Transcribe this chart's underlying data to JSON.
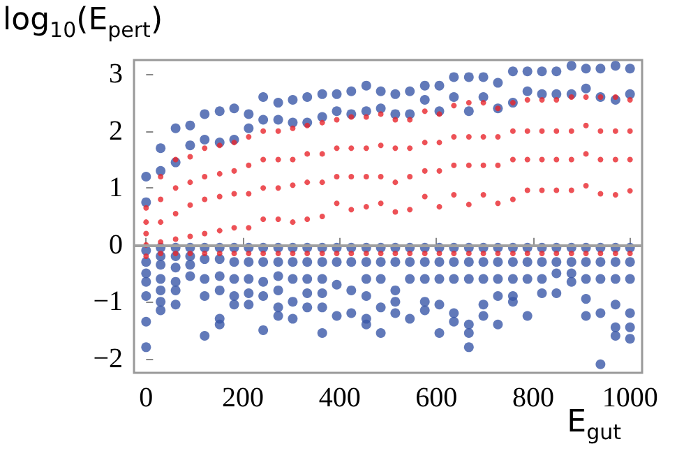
{
  "chart_data": {
    "type": "scatter",
    "xlabel": "E$_{gut}$",
    "ylabel": "log$_{10}$(E$_{pert}$)",
    "xlim": [
      -25,
      1025
    ],
    "ylim": [
      -2.25,
      3.25
    ],
    "xticks": [
      0,
      200,
      400,
      600,
      800,
      1000
    ],
    "yticks": [
      -2,
      -1,
      0,
      1,
      2,
      3
    ],
    "grid": false,
    "marker": "circle",
    "ref_lines": [
      {
        "axis": "y",
        "value": 0,
        "color": "#a0a0a0"
      }
    ],
    "series": [
      {
        "color": "#3a57a8",
        "x": [
          0,
          0,
          0,
          0,
          0,
          0,
          0,
          0,
          0,
          30,
          30,
          30,
          30,
          30,
          30,
          30,
          30,
          30,
          61,
          61,
          61,
          61,
          61,
          61,
          61,
          61,
          91,
          91,
          91,
          91,
          91,
          91,
          121,
          121,
          121,
          121,
          121,
          121,
          121,
          152,
          152,
          152,
          152,
          152,
          152,
          152,
          152,
          182,
          182,
          182,
          182,
          182,
          182,
          182,
          212,
          212,
          212,
          212,
          212,
          212,
          212,
          242,
          242,
          242,
          242,
          242,
          242,
          242,
          273,
          273,
          273,
          273,
          273,
          273,
          273,
          273,
          303,
          303,
          303,
          303,
          303,
          303,
          303,
          333,
          333,
          333,
          333,
          333,
          333,
          333,
          364,
          364,
          364,
          364,
          364,
          364,
          364,
          364,
          394,
          394,
          394,
          394,
          394,
          394,
          424,
          424,
          424,
          424,
          424,
          424,
          455,
          455,
          455,
          455,
          455,
          455,
          455,
          455,
          485,
          485,
          485,
          485,
          485,
          485,
          485,
          515,
          515,
          515,
          515,
          515,
          515,
          515,
          545,
          545,
          545,
          545,
          545,
          545,
          576,
          576,
          576,
          576,
          576,
          576,
          576,
          606,
          606,
          606,
          606,
          606,
          606,
          606,
          636,
          636,
          636,
          636,
          636,
          636,
          636,
          667,
          667,
          667,
          667,
          667,
          667,
          667,
          667,
          697,
          697,
          697,
          697,
          697,
          697,
          697,
          727,
          727,
          727,
          727,
          727,
          727,
          727,
          758,
          758,
          758,
          758,
          758,
          758,
          758,
          788,
          788,
          788,
          788,
          788,
          788,
          818,
          818,
          818,
          818,
          818,
          818,
          848,
          848,
          848,
          848,
          848,
          848,
          879,
          879,
          879,
          879,
          879,
          879,
          909,
          909,
          909,
          909,
          909,
          909,
          909,
          939,
          939,
          939,
          939,
          939,
          939,
          939,
          970,
          970,
          970,
          970,
          970,
          970,
          970,
          970,
          1000,
          1000,
          1000,
          1000,
          1000,
          1000,
          1000,
          1000
        ],
        "values": [
          1.2,
          0.75,
          -0.1,
          -0.3,
          -0.5,
          -0.65,
          -0.9,
          -1.35,
          -1.8,
          1.7,
          1.3,
          -0.05,
          -0.2,
          -0.35,
          -0.6,
          -0.8,
          -1.0,
          -1.15,
          2.05,
          1.45,
          -0.05,
          -0.2,
          -0.4,
          -0.65,
          -0.8,
          -1.05,
          2.1,
          1.75,
          -0.05,
          -0.2,
          -0.35,
          -0.55,
          2.3,
          1.85,
          -0.05,
          -0.25,
          -0.6,
          -0.9,
          -1.6,
          2.35,
          1.8,
          -0.05,
          -0.25,
          -0.55,
          -0.8,
          -1.3,
          -1.4,
          2.4,
          1.85,
          -0.05,
          -0.3,
          -0.6,
          -0.9,
          -1.05,
          2.3,
          2.05,
          -0.05,
          -0.3,
          -0.6,
          -0.85,
          -1.05,
          2.6,
          2.2,
          -0.05,
          -0.3,
          -0.65,
          -0.9,
          -1.5,
          2.5,
          2.2,
          -0.05,
          -0.3,
          -0.55,
          -0.8,
          -1.1,
          -1.25,
          2.55,
          2.15,
          -0.05,
          -0.3,
          -0.6,
          -1.0,
          -1.3,
          2.6,
          2.15,
          -0.05,
          -0.3,
          -0.6,
          -0.85,
          -1.1,
          2.65,
          2.25,
          -0.05,
          -0.3,
          -0.6,
          -0.85,
          -1.1,
          -1.55,
          2.65,
          2.35,
          -0.05,
          -0.3,
          -0.7,
          -1.25,
          2.7,
          2.3,
          -0.05,
          -0.3,
          -0.8,
          -1.2,
          2.8,
          2.35,
          -0.05,
          -0.3,
          -0.6,
          -0.9,
          -1.3,
          -1.4,
          2.7,
          2.4,
          -0.05,
          -0.3,
          -0.6,
          -1.1,
          -1.55,
          2.65,
          2.3,
          -0.05,
          -0.3,
          -0.8,
          -1.0,
          -1.2,
          2.7,
          2.3,
          -0.05,
          -0.3,
          -0.6,
          -1.3,
          2.8,
          2.55,
          -0.05,
          -0.3,
          -0.6,
          -1.0,
          -1.15,
          2.8,
          2.35,
          -0.05,
          -0.3,
          -0.6,
          -1.05,
          -1.55,
          2.95,
          2.6,
          -0.05,
          -0.3,
          -0.6,
          -1.2,
          -1.35,
          2.95,
          2.35,
          -0.05,
          -0.3,
          -0.6,
          -1.4,
          -1.55,
          -1.8,
          2.95,
          2.6,
          -0.05,
          -0.3,
          -0.6,
          -1.05,
          -1.25,
          2.85,
          2.4,
          -0.05,
          -0.3,
          -0.6,
          -0.9,
          -1.4,
          3.05,
          2.5,
          -0.05,
          -0.3,
          -0.6,
          -0.9,
          -1.0,
          3.05,
          2.7,
          -0.05,
          -0.3,
          -0.6,
          -1.25,
          3.05,
          2.65,
          -0.05,
          -0.3,
          -0.6,
          -0.85,
          3.05,
          2.65,
          -0.05,
          -0.3,
          -0.5,
          -0.85,
          3.15,
          2.65,
          -0.05,
          -0.3,
          -0.5,
          -0.65,
          3.1,
          2.75,
          -0.05,
          -0.3,
          -0.6,
          -0.95,
          -1.25,
          3.1,
          2.6,
          -0.05,
          -0.3,
          -0.6,
          -1.2,
          -2.1,
          3.15,
          2.55,
          -0.05,
          -0.3,
          -0.6,
          -1.05,
          -1.45,
          -1.6,
          3.1,
          2.65,
          -0.05,
          -0.3,
          -0.6,
          -1.2,
          -1.45,
          -1.65
        ]
      },
      {
        "color": "#e8262c",
        "x": [
          0,
          0,
          0,
          0,
          0,
          30,
          30,
          30,
          30,
          30,
          61,
          61,
          61,
          61,
          61,
          91,
          91,
          91,
          91,
          91,
          121,
          121,
          121,
          121,
          121,
          152,
          152,
          152,
          152,
          152,
          182,
          182,
          182,
          182,
          182,
          212,
          212,
          212,
          212,
          212,
          242,
          242,
          242,
          242,
          242,
          273,
          273,
          273,
          273,
          273,
          303,
          303,
          303,
          303,
          303,
          333,
          333,
          333,
          333,
          333,
          364,
          364,
          364,
          364,
          364,
          394,
          394,
          394,
          394,
          394,
          424,
          424,
          424,
          424,
          424,
          455,
          455,
          455,
          455,
          455,
          485,
          485,
          485,
          485,
          485,
          515,
          515,
          515,
          515,
          515,
          545,
          545,
          545,
          545,
          545,
          576,
          576,
          576,
          576,
          576,
          606,
          606,
          606,
          606,
          606,
          636,
          636,
          636,
          636,
          636,
          667,
          667,
          667,
          667,
          667,
          697,
          697,
          697,
          697,
          697,
          727,
          727,
          727,
          727,
          727,
          758,
          758,
          758,
          758,
          758,
          788,
          788,
          788,
          788,
          788,
          818,
          818,
          818,
          818,
          818,
          848,
          848,
          848,
          848,
          848,
          879,
          879,
          879,
          879,
          879,
          909,
          909,
          909,
          909,
          909,
          939,
          939,
          939,
          939,
          939,
          970,
          970,
          970,
          970,
          970,
          1000,
          1000,
          1000,
          1000,
          1000
        ],
        "values": [
          0.65,
          0.4,
          0.2,
          0.0,
          -0.2,
          1.2,
          0.8,
          0.4,
          0.05,
          -0.15,
          1.5,
          1.0,
          0.55,
          0.1,
          -0.15,
          1.55,
          1.1,
          0.7,
          0.15,
          -0.15,
          1.7,
          1.2,
          0.8,
          0.2,
          -0.15,
          1.75,
          1.25,
          0.85,
          0.25,
          -0.15,
          1.8,
          1.3,
          0.9,
          0.3,
          -0.15,
          1.9,
          1.4,
          0.9,
          0.3,
          -0.15,
          2.0,
          1.5,
          1.0,
          0.45,
          -0.15,
          2.0,
          1.5,
          1.0,
          0.45,
          -0.15,
          2.05,
          1.5,
          1.05,
          0.4,
          -0.15,
          2.1,
          1.6,
          1.1,
          0.45,
          -0.15,
          2.15,
          1.6,
          1.1,
          0.5,
          -0.15,
          2.2,
          1.7,
          1.2,
          0.73,
          -0.15,
          2.25,
          1.7,
          1.2,
          0.62,
          -0.15,
          2.25,
          1.7,
          1.2,
          0.67,
          -0.15,
          2.3,
          1.75,
          1.2,
          0.73,
          -0.15,
          2.2,
          1.7,
          1.1,
          0.58,
          -0.15,
          2.2,
          1.7,
          1.2,
          0.62,
          -0.15,
          2.35,
          1.8,
          1.3,
          0.85,
          -0.15,
          2.3,
          1.8,
          1.3,
          0.67,
          -0.15,
          2.45,
          1.9,
          1.4,
          0.88,
          -0.15,
          2.5,
          1.9,
          1.4,
          0.71,
          -0.15,
          2.5,
          1.9,
          1.4,
          0.88,
          -0.15,
          2.4,
          1.9,
          1.4,
          0.73,
          -0.15,
          2.5,
          2.0,
          1.5,
          0.8,
          -0.15,
          2.55,
          2.0,
          1.5,
          0.96,
          -0.15,
          2.55,
          2.0,
          1.5,
          0.96,
          -0.15,
          2.55,
          2.0,
          1.5,
          0.96,
          -0.15,
          2.6,
          2.0,
          1.5,
          0.96,
          -0.15,
          2.6,
          2.1,
          1.6,
          1.04,
          -0.15,
          2.6,
          2.0,
          1.5,
          0.9,
          -0.15,
          2.6,
          2.0,
          1.5,
          0.88,
          -0.15,
          2.55,
          2.0,
          1.5,
          0.95,
          -0.15
        ]
      }
    ]
  }
}
